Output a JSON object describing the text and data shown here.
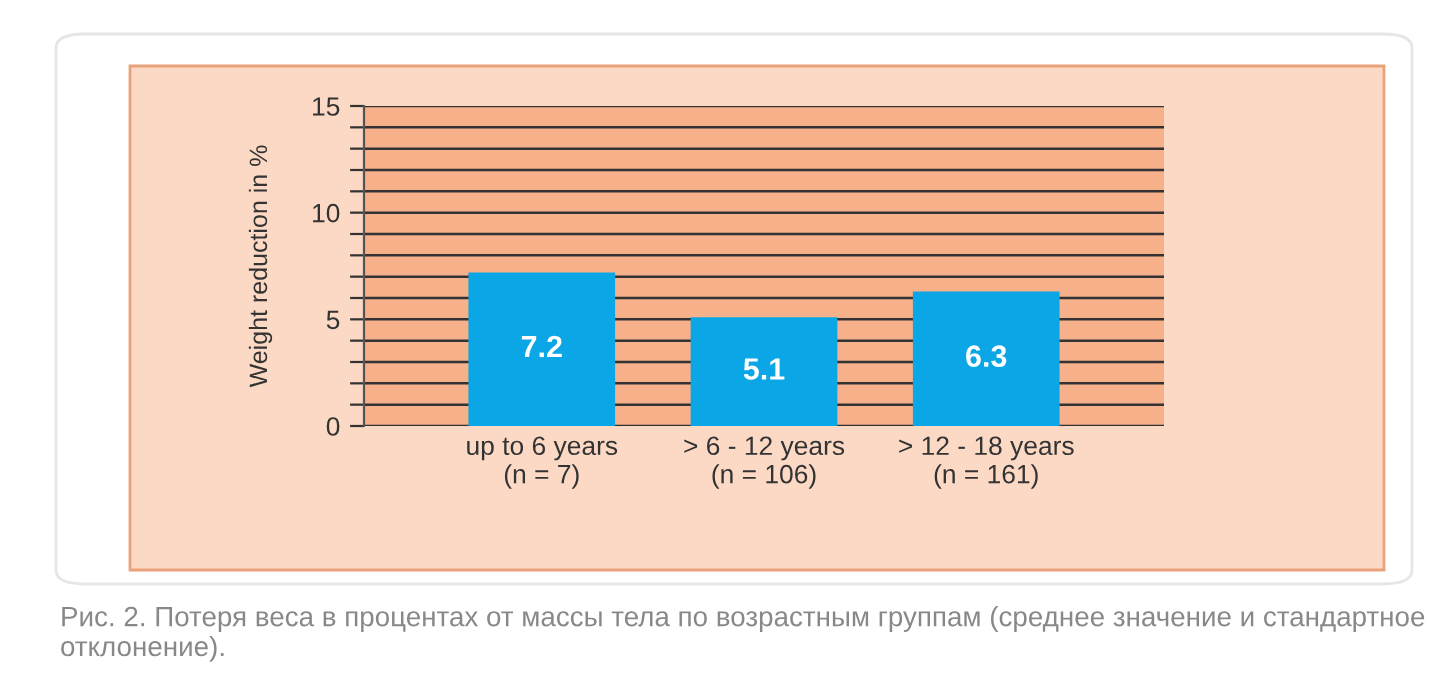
{
  "chart_data": {
    "type": "bar",
    "ylabel": "Weight reduction in %",
    "categories": [
      "up to 6 years\n(n = 7)",
      "> 6 - 12 years\n(n = 106)",
      "> 12 - 18 years\n(n = 161)"
    ],
    "values": [
      7.2,
      5.1,
      6.3
    ],
    "color": "#0aa6e6",
    "data_labels": true,
    "ylim": [
      0,
      15
    ],
    "yticks": [
      0,
      {
        "value": 1,
        "label": null
      },
      {
        "value": 2,
        "label": null
      },
      {
        "value": 3,
        "label": null
      },
      {
        "value": 4,
        "label": null
      },
      5,
      {
        "value": 6,
        "label": null
      },
      {
        "value": 7,
        "label": null
      },
      {
        "value": 8,
        "label": null
      },
      {
        "value": 9,
        "label": null
      },
      10,
      {
        "value": 11,
        "label": null
      },
      {
        "value": 12,
        "label": null
      },
      {
        "value": 13,
        "label": null
      },
      {
        "value": 14,
        "label": null
      },
      15
    ],
    "grid": "y",
    "annotations": [
      "Рис. 2. Потеря веса в процентах от массы тела по возрастным группам (среднее значение и стандартное отклонение)."
    ]
  }
}
